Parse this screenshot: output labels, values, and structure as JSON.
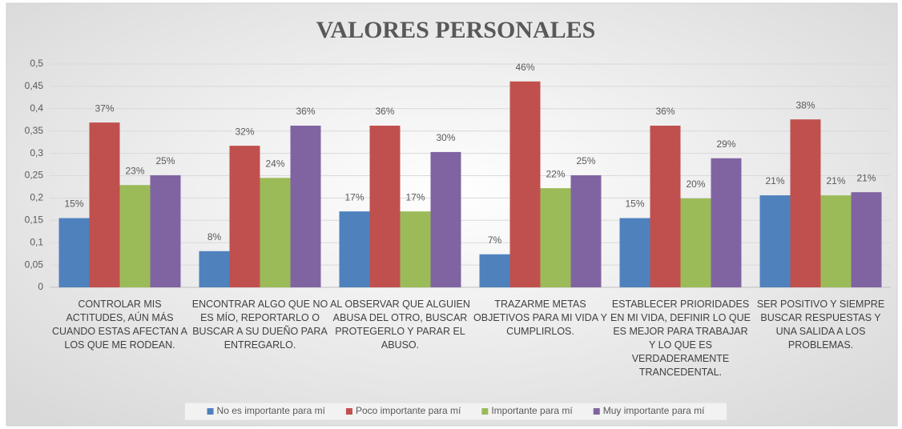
{
  "chart_data": {
    "type": "bar",
    "title": "VALORES PERSONALES",
    "categories": [
      "CONTROLAR MIS ACTITUDES, AÚN MÁS CUANDO ESTAS AFECTAN A LOS QUE ME RODEAN.",
      "ENCONTRAR ALGO QUE NO ES MÍO, REPORTARLO O BUSCAR A SU DUEÑO PARA ENTREGARLO.",
      "AL OBSERVAR QUE ALGUIEN ABUSA DEL OTRO, BUSCAR PROTEGERLO Y PARAR EL ABUSO.",
      "TRAZARME METAS OBJETIVOS PARA MI VIDA Y CUMPLIRLOS.",
      "ESTABLECER PRIORIDADES EN MI VIDA, DEFINIR LO QUE ES MEJOR PARA TRABAJAR Y LO QUE ES VERDADERAMENTE TRANCEDENTAL.",
      "SER POSITIVO Y SIEMPRE BUSCAR RESPUESTAS Y UNA SALIDA A LOS PROBLEMAS."
    ],
    "series": [
      {
        "name": "No es importante para mí",
        "color": "#4f81bd",
        "values": [
          0.155,
          0.081,
          0.17,
          0.074,
          0.155,
          0.206
        ],
        "value_labels": [
          "15%",
          "8%",
          "17%",
          "7%",
          "15%",
          "21%"
        ]
      },
      {
        "name": "Poco importante para mí",
        "color": "#c0504d",
        "values": [
          0.369,
          0.317,
          0.362,
          0.461,
          0.362,
          0.376
        ],
        "value_labels": [
          "37%",
          "32%",
          "36%",
          "46%",
          "36%",
          "38%"
        ]
      },
      {
        "name": "Importante para mí",
        "color": "#9bbb59",
        "values": [
          0.229,
          0.245,
          0.17,
          0.222,
          0.199,
          0.206
        ],
        "value_labels": [
          "23%",
          "24%",
          "17%",
          "22%",
          "20%",
          "21%"
        ]
      },
      {
        "name": "Muy importante para mí",
        "color": "#8064a2",
        "values": [
          0.251,
          0.362,
          0.303,
          0.251,
          0.289,
          0.213
        ],
        "value_labels": [
          "25%",
          "36%",
          "30%",
          "25%",
          "29%",
          "21%"
        ]
      }
    ],
    "ylim": [
      0,
      0.5
    ],
    "yticks": [
      0,
      {
        "value": 0.05,
        "label": "0,05"
      },
      {
        "value": 0.1,
        "label": "0,1"
      },
      {
        "value": 0.15,
        "label": "0,15"
      },
      {
        "value": 0.2,
        "label": "0,2"
      },
      {
        "value": 0.25,
        "label": "0,25"
      },
      {
        "value": 0.3,
        "label": "0,3"
      },
      {
        "value": 0.35,
        "label": "0,35"
      },
      {
        "value": 0.4,
        "label": "0,4"
      },
      {
        "value": 0.45,
        "label": "0,45"
      },
      {
        "value": 0.5,
        "label": "0,5"
      }
    ],
    "legend": "bottom"
  }
}
